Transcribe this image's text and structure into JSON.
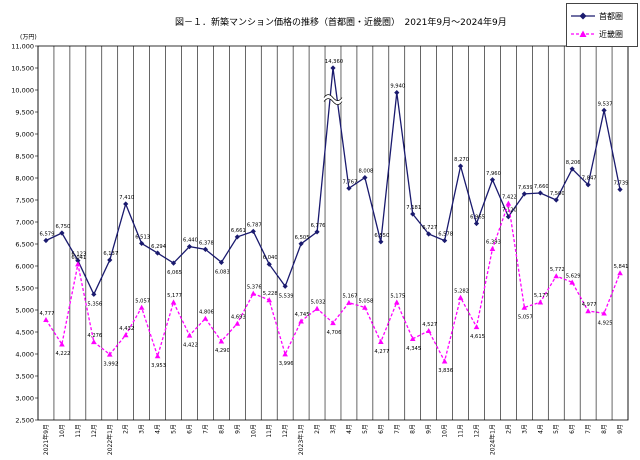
{
  "title": "図－１．新築マンション価格の推移（首都圏・近畿圏）　2021年9月～2024年9月",
  "unit": "(万円)",
  "chart_data": {
    "type": "line",
    "title": "図－１．新築マンション価格の推移（首都圏・近畿圏）　2021年9月～2024年9月",
    "ylabel": "(万円)",
    "ylim": [
      2500,
      11000
    ],
    "grid": true,
    "legend": "top-right",
    "y_ticks": [
      "2,500",
      "3,000",
      "3,500",
      "4,000",
      "4,500",
      "5,000",
      "5,500",
      "6,000",
      "6,500",
      "7,000",
      "7,500",
      "8,000",
      "8,500",
      "9,000",
      "9,500",
      "10,000",
      "10,500",
      "11,000"
    ],
    "categories": [
      "2021年9月",
      "10月",
      "11月",
      "12月",
      "2022年1月",
      "2月",
      "3月",
      "4月",
      "5月",
      "6月",
      "7月",
      "8月",
      "9月",
      "10月",
      "11月",
      "12月",
      "2023年1月",
      "2月",
      "3月",
      "4月",
      "5月",
      "6月",
      "7月",
      "8月",
      "9月",
      "10月",
      "11月",
      "12月",
      "2024年1月",
      "2月",
      "3月",
      "4月",
      "5月",
      "6月",
      "7月",
      "8月",
      "9月"
    ],
    "series": [
      {
        "name": "首都圏",
        "color": "#1a1a6e",
        "marker": "diamond",
        "values": [
          6579,
          6750,
          6123,
          5356,
          6137,
          7410,
          6513,
          6294,
          6065,
          6440,
          6378,
          6083,
          6661,
          6787,
          6040,
          5539,
          6505,
          6776,
          14360,
          7767,
          8008,
          6550,
          9940,
          7181,
          6727,
          6578,
          8270,
          6965,
          7960,
          7120,
          7639,
          7660,
          7500,
          8206,
          7847,
          9537,
          7739
        ],
        "labels": [
          "6,579",
          "6,750",
          "6,123",
          "5,356",
          "6,137",
          "7,410",
          "6,513",
          "6,294",
          "6,065",
          "6,440",
          "6,378",
          "6,083",
          "6,661",
          "6,787",
          "6,040",
          "5,539",
          "6,505",
          "6,776",
          "14,360",
          "7,767",
          "8,008",
          "6,550",
          "9,940",
          "7,181",
          "6,727",
          "6,578",
          "8,270",
          "6,965",
          "7,960",
          "7,120",
          "7,639",
          "7,660",
          "7,500",
          "8,206",
          "7,847",
          "9,537",
          "7,739"
        ]
      },
      {
        "name": "近畿圏",
        "color": "#ff00ff",
        "marker": "triangle",
        "values": [
          4777,
          4222,
          6041,
          4276,
          3992,
          4432,
          5057,
          3953,
          5177,
          4422,
          4806,
          4290,
          4693,
          5376,
          5228,
          3996,
          4745,
          5032,
          4706,
          5167,
          5058,
          4277,
          5175,
          4345,
          4527,
          3836,
          5282,
          4615,
          6393,
          7422,
          5057,
          5177,
          5772,
          5629,
          4977,
          4925,
          5841
        ],
        "labels": [
          "4,777",
          "4,222",
          "6,041",
          "4,276",
          "3,992",
          "4,432",
          "5,057",
          "3,953",
          "5,177",
          "4,422",
          "4,806",
          "4,290",
          "4,693",
          "5,376",
          "5,228",
          "3,996",
          "4,745",
          "5,032",
          "4,706",
          "5,167",
          "5,058",
          "4,277",
          "5,175",
          "4,345",
          "4,527",
          "3,836",
          "5,282",
          "4,615",
          "6,393",
          "7,422",
          "5,057",
          "5,177",
          "5,772",
          "5,629",
          "4,977",
          "4,925",
          "5,841"
        ]
      }
    ],
    "axis_break": {
      "series": "首都圏",
      "index": 18,
      "display_value": 10500
    }
  }
}
